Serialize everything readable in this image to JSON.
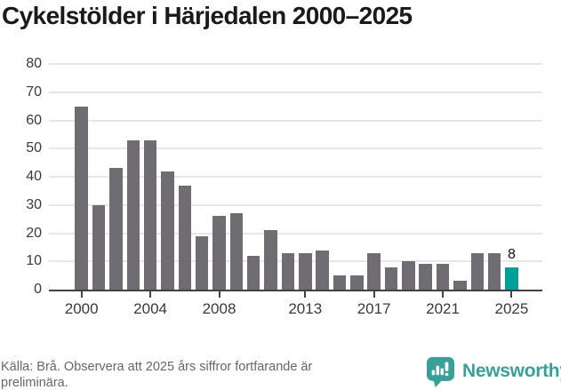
{
  "title": "Cykelstölder i Härjedalen 2000–2025",
  "footer": {
    "lines": [
      "Källa: Brå. Observera att 2025 års siffror fortfarande är",
      "preliminära."
    ],
    "brand": "Newsworthy"
  },
  "colors": {
    "bar": "#6f6d71",
    "highlight": "#00a09a",
    "brand_teal": "#3b9f99",
    "gridline": "#e7e7e7",
    "axis": "#414141",
    "title_text": "#1a1a1a",
    "footer_text": "#66666c",
    "background": "#ffffff"
  },
  "chart_data": {
    "type": "bar",
    "title": "Cykelstölder i Härjedalen 2000–2025",
    "xlabel": "",
    "ylabel": "",
    "x": [
      2000,
      2001,
      2002,
      2003,
      2004,
      2005,
      2006,
      2007,
      2008,
      2009,
      2010,
      2011,
      2012,
      2013,
      2014,
      2015,
      2016,
      2017,
      2018,
      2019,
      2020,
      2021,
      2022,
      2023,
      2024,
      2025
    ],
    "values": [
      65,
      30,
      43,
      53,
      53,
      42,
      37,
      19,
      26,
      27,
      12,
      21,
      13,
      13,
      14,
      5,
      5,
      13,
      8,
      10,
      9,
      9,
      3,
      13,
      13,
      8
    ],
    "bar_color": "#6f6d71",
    "highlight": {
      "year": 2025,
      "value": 8,
      "label": "8",
      "color": "#00a09a"
    },
    "ylim": [
      0,
      80
    ],
    "yticks": [
      0,
      10,
      20,
      30,
      40,
      50,
      60,
      70,
      80
    ],
    "xticks": [
      2000,
      2004,
      2008,
      2013,
      2017,
      2021,
      2025
    ],
    "grid": true,
    "legend_position": "none"
  }
}
